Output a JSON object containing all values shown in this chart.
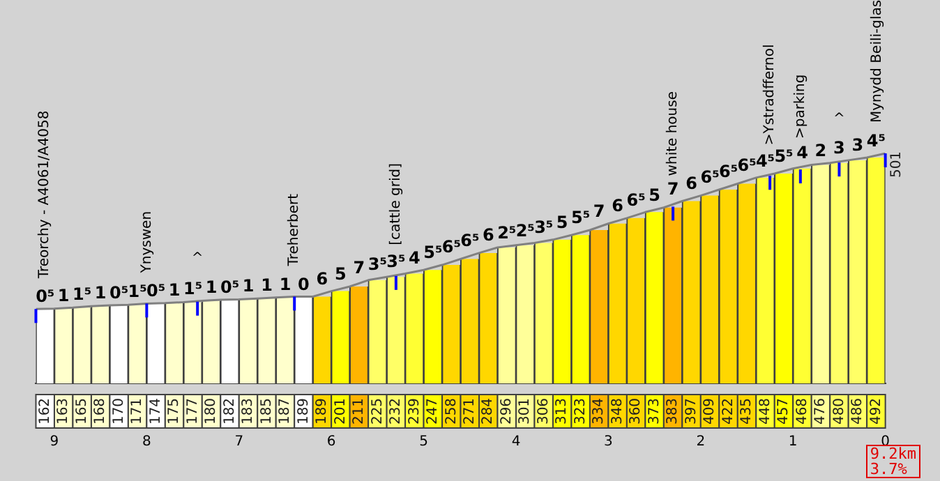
{
  "chart_data": {
    "type": "bar",
    "xlim": [
      9.2,
      0
    ],
    "xticks": [
      9,
      8,
      7,
      6,
      5,
      4,
      3,
      2,
      1,
      0
    ],
    "tick_labels": "x",
    "grid": false,
    "legend": false,
    "marker": "none",
    "series": [
      {
        "x": [
          9.1,
          8.9,
          8.7,
          8.5,
          8.3,
          8.1,
          7.9,
          7.7,
          7.5,
          7.3,
          7.1,
          6.9,
          6.7,
          6.5,
          6.3,
          6.1,
          5.9,
          5.7,
          5.5,
          5.3,
          5.1,
          4.9,
          4.7,
          4.5,
          4.3,
          4.1,
          3.9,
          3.7,
          3.5,
          3.3,
          3.1,
          2.9,
          2.7,
          2.5,
          2.3,
          2.1,
          1.9,
          1.7,
          1.5,
          1.3,
          1.1,
          0.9,
          0.7,
          0.5,
          0.3,
          0.1
        ],
        "values": [
          162,
          163,
          165,
          168,
          170,
          171,
          174,
          175,
          177,
          180,
          182,
          183,
          185,
          187,
          189,
          189,
          201,
          211,
          225,
          232,
          239,
          247,
          258,
          271,
          284,
          296,
          301,
          306,
          313,
          323,
          334,
          348,
          360,
          373,
          383,
          397,
          409,
          422,
          435,
          448,
          457,
          468,
          476,
          480,
          486,
          492
        ],
        "value_labels": [
          "162",
          "163",
          "165",
          "168",
          "170",
          "171",
          "174",
          "175",
          "177",
          "180",
          "182",
          "183",
          "185",
          "187",
          "189",
          "189",
          "201",
          "211",
          "225",
          "232",
          "239",
          "247",
          "258",
          "271",
          "284",
          "296",
          "301",
          "306",
          "313",
          "323",
          "334",
          "348",
          "360",
          "373",
          "383",
          "397",
          "409",
          "422",
          "435",
          "448",
          "457",
          "468",
          "476",
          "480",
          "486",
          "492"
        ],
        "colors": [
          "#ffffff",
          "#ffffcc",
          "#ffffcc",
          "#ffffcc",
          "#ffffff",
          "#ffffcc",
          "#ffffff",
          "#ffffcc",
          "#ffffcc",
          "#ffffcc",
          "#ffffff",
          "#ffffcc",
          "#ffffcc",
          "#ffffcc",
          "#ffffff",
          "#ffd700",
          "#ffff00",
          "#ffb400",
          "#ffff66",
          "#ffff66",
          "#ffff33",
          "#ffff00",
          "#ffd700",
          "#ffd700",
          "#ffd700",
          "#ffff99",
          "#ffff99",
          "#ffff66",
          "#ffff00",
          "#ffff00",
          "#ffb400",
          "#ffd700",
          "#ffd700",
          "#ffff00",
          "#ffb400",
          "#ffd700",
          "#ffd700",
          "#ffd700",
          "#ffd700",
          "#ffff33",
          "#ffff00",
          "#ffff33",
          "#ffff99",
          "#ffff66",
          "#ffff66",
          "#ffff33"
        ]
      },
      {
        "type": "line",
        "color": "#808080",
        "x": [
          9.2,
          9.0,
          8.8,
          8.6,
          8.4,
          8.2,
          8.0,
          7.8,
          7.6,
          7.4,
          7.2,
          7.0,
          6.8,
          6.6,
          6.4,
          6.2,
          6.0,
          5.8,
          5.6,
          5.4,
          5.2,
          5.0,
          4.8,
          4.6,
          4.4,
          4.2,
          4.0,
          3.8,
          3.6,
          3.4,
          3.2,
          3.0,
          2.8,
          2.6,
          2.4,
          2.2,
          2.0,
          1.8,
          1.6,
          1.4,
          1.2,
          1.0,
          0.8,
          0.6,
          0.4,
          0.2,
          0
        ],
        "values": [
          162,
          163,
          165,
          168,
          170,
          171,
          174,
          175,
          177,
          180,
          182,
          183,
          185,
          187,
          189,
          189,
          201,
          211,
          225,
          232,
          239,
          247,
          258,
          271,
          284,
          296,
          301,
          306,
          313,
          323,
          334,
          348,
          360,
          373,
          383,
          397,
          409,
          422,
          435,
          448,
          457,
          468,
          476,
          480,
          486,
          492,
          501
        ],
        "value_labels": [
          null,
          null,
          null,
          null,
          null,
          null,
          null,
          null,
          null,
          null,
          null,
          null,
          null,
          null,
          null,
          null,
          null,
          null,
          null,
          null,
          null,
          null,
          null,
          null,
          null,
          null,
          null,
          null,
          null,
          null,
          null,
          null,
          null,
          null,
          null,
          null,
          null,
          null,
          null,
          null,
          null,
          null,
          null,
          null,
          null,
          null,
          "501"
        ]
      }
    ],
    "annotations": [
      {
        "text": "0⁵",
        "x": 9.1,
        "y": 163
      },
      {
        "text": "1",
        "x": 8.9,
        "y": 165
      },
      {
        "text": "1⁵",
        "x": 8.7,
        "y": 168
      },
      {
        "text": "1",
        "x": 8.5,
        "y": 170
      },
      {
        "text": "0⁵",
        "x": 8.3,
        "y": 171
      },
      {
        "text": "1⁵",
        "x": 8.1,
        "y": 174
      },
      {
        "text": "0⁵",
        "x": 7.9,
        "y": 175
      },
      {
        "text": "1",
        "x": 7.7,
        "y": 177
      },
      {
        "text": "1⁵",
        "x": 7.5,
        "y": 180
      },
      {
        "text": "1",
        "x": 7.3,
        "y": 182
      },
      {
        "text": "0⁵",
        "x": 7.1,
        "y": 183
      },
      {
        "text": "1",
        "x": 6.9,
        "y": 185
      },
      {
        "text": "1",
        "x": 6.7,
        "y": 187
      },
      {
        "text": "1",
        "x": 6.5,
        "y": 189
      },
      {
        "text": "0",
        "x": 6.3,
        "y": 189
      },
      {
        "text": "6",
        "x": 6.1,
        "y": 201
      },
      {
        "text": "5",
        "x": 5.9,
        "y": 211
      },
      {
        "text": "7",
        "x": 5.7,
        "y": 225
      },
      {
        "text": "3⁵",
        "x": 5.5,
        "y": 232
      },
      {
        "text": "3⁵",
        "x": 5.3,
        "y": 239
      },
      {
        "text": "4",
        "x": 5.1,
        "y": 247
      },
      {
        "text": "5⁵",
        "x": 4.9,
        "y": 258
      },
      {
        "text": "6⁵",
        "x": 4.7,
        "y": 271
      },
      {
        "text": "6⁵",
        "x": 4.5,
        "y": 284
      },
      {
        "text": "6",
        "x": 4.3,
        "y": 296
      },
      {
        "text": "2⁵",
        "x": 4.1,
        "y": 301
      },
      {
        "text": "2⁵",
        "x": 3.9,
        "y": 306
      },
      {
        "text": "3⁵",
        "x": 3.7,
        "y": 313
      },
      {
        "text": "5",
        "x": 3.5,
        "y": 323
      },
      {
        "text": "5⁵",
        "x": 3.3,
        "y": 334
      },
      {
        "text": "7",
        "x": 3.1,
        "y": 348
      },
      {
        "text": "6",
        "x": 2.9,
        "y": 360
      },
      {
        "text": "6⁵",
        "x": 2.7,
        "y": 373
      },
      {
        "text": "5",
        "x": 2.5,
        "y": 383
      },
      {
        "text": "7",
        "x": 2.3,
        "y": 397
      },
      {
        "text": "6",
        "x": 2.1,
        "y": 409
      },
      {
        "text": "6⁵",
        "x": 1.9,
        "y": 422
      },
      {
        "text": "6⁵",
        "x": 1.7,
        "y": 435
      },
      {
        "text": "6⁵",
        "x": 1.5,
        "y": 448
      },
      {
        "text": "4⁵",
        "x": 1.3,
        "y": 457
      },
      {
        "text": "5⁵",
        "x": 1.1,
        "y": 468
      },
      {
        "text": "4",
        "x": 0.9,
        "y": 476
      },
      {
        "text": "2",
        "x": 0.7,
        "y": 480
      },
      {
        "text": "3",
        "x": 0.5,
        "y": 486
      },
      {
        "text": "3",
        "x": 0.3,
        "y": 492
      },
      {
        "text": "4⁵",
        "x": 0.1,
        "y": 501
      },
      {
        "text": "Treorchy - A4061/A4058",
        "x": 9.2,
        "y": 162
      },
      {
        "text": "Ynyswen",
        "x": 8.0,
        "y": 174
      },
      {
        "text": "^",
        "x": 7.45,
        "y": 178
      },
      {
        "text": "Treherbert",
        "x": 6.4,
        "y": 189
      },
      {
        "text": "[cattle grid]",
        "x": 5.3,
        "y": 234
      },
      {
        "text": "white house",
        "x": 2.3,
        "y": 385
      },
      {
        "text": ">Ystradffernol",
        "x": 1.25,
        "y": 452
      },
      {
        "text": ">parking",
        "x": 0.92,
        "y": 466
      },
      {
        "text": "^",
        "x": 0.5,
        "y": 481
      },
      {
        "text": "Mynydd Beili-glas",
        "x": 0,
        "y": 501
      },
      "9.2km",
      "3.7%"
    ]
  }
}
